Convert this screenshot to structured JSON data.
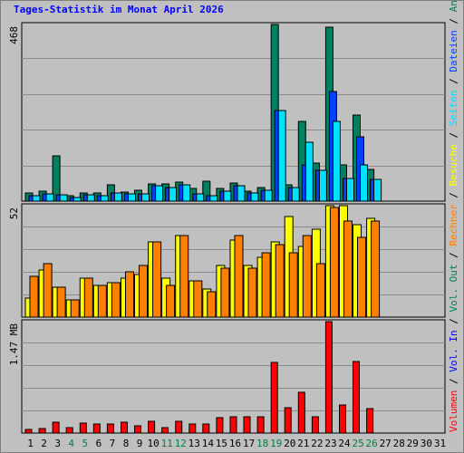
{
  "title": "Tages-Statistik im Monat April 2026",
  "colors": {
    "background": "#c0c0c0",
    "frame": "#808080",
    "grid": "#8c8c8c",
    "title": "#0000ff",
    "weekday_label": "#000000",
    "weekend_label": "#008040"
  },
  "chart_data": [
    {
      "type": "bar",
      "panel": "top",
      "ytick_label": "468",
      "ylim": [
        0,
        468
      ],
      "grid": true,
      "categories": [
        "1",
        "2",
        "3",
        "4",
        "5",
        "6",
        "7",
        "8",
        "9",
        "10",
        "11",
        "12",
        "13",
        "14",
        "15",
        "16",
        "17",
        "18",
        "19",
        "20",
        "21",
        "22",
        "23",
        "24",
        "25",
        "26",
        "27",
        "28",
        "29",
        "30",
        "31"
      ],
      "weekend_days": [
        4,
        5,
        11,
        12,
        18,
        19,
        25,
        26
      ],
      "series": [
        {
          "name": "Anfragen",
          "color": "#008060",
          "values": [
            22,
            26,
            120,
            14,
            22,
            21,
            44,
            25,
            29,
            46,
            46,
            50,
            34,
            53,
            34,
            47,
            27,
            37,
            468,
            42,
            212,
            100,
            460,
            95,
            229,
            85,
            null,
            null,
            null,
            null,
            null
          ]
        },
        {
          "name": "Dateien",
          "color": "#0040ff",
          "values": [
            14,
            20,
            16,
            10,
            16,
            14,
            22,
            18,
            20,
            40,
            35,
            44,
            20,
            14,
            26,
            40,
            22,
            30,
            240,
            36,
            95,
            82,
            290,
            60,
            170,
            58,
            null,
            null,
            null,
            null,
            null
          ]
        },
        {
          "name": "Seiten",
          "color": "#00e0ff",
          "values": [
            14,
            20,
            16,
            10,
            16,
            14,
            22,
            18,
            20,
            40,
            35,
            44,
            20,
            14,
            26,
            40,
            22,
            30,
            240,
            36,
            155,
            82,
            210,
            60,
            96,
            58,
            null,
            null,
            null,
            null,
            null
          ]
        }
      ]
    },
    {
      "type": "bar",
      "panel": "middle",
      "ytick_label": "52",
      "ylim": [
        0,
        52
      ],
      "grid": true,
      "categories": [
        "1",
        "2",
        "3",
        "4",
        "5",
        "6",
        "7",
        "8",
        "9",
        "10",
        "11",
        "12",
        "13",
        "14",
        "15",
        "16",
        "17",
        "18",
        "19",
        "20",
        "21",
        "22",
        "23",
        "24",
        "25",
        "26",
        "27",
        "28",
        "29",
        "30",
        "31"
      ],
      "series": [
        {
          "name": "Besuche",
          "color": "#ffff00",
          "values": [
            9,
            22,
            14,
            8,
            18,
            15,
            16,
            18,
            20,
            35,
            18,
            38,
            17,
            13,
            24,
            36,
            24,
            28,
            35,
            47,
            33,
            41,
            52,
            52,
            43,
            46,
            null,
            null,
            null,
            null,
            null
          ]
        },
        {
          "name": "Rechner",
          "color": "#ff8000",
          "values": [
            19,
            25,
            14,
            8,
            18,
            15,
            16,
            21,
            24,
            35,
            15,
            38,
            17,
            12,
            23,
            38,
            23,
            30,
            34,
            30,
            38,
            25,
            51,
            45,
            37,
            45,
            null,
            null,
            null,
            null,
            null
          ]
        }
      ]
    },
    {
      "type": "bar",
      "panel": "bottom",
      "ytick_label": "1.47 MB",
      "ylim": [
        0,
        1.47
      ],
      "grid": true,
      "categories": [
        "1",
        "2",
        "3",
        "4",
        "5",
        "6",
        "7",
        "8",
        "9",
        "10",
        "11",
        "12",
        "13",
        "14",
        "15",
        "16",
        "17",
        "18",
        "19",
        "20",
        "21",
        "22",
        "23",
        "24",
        "25",
        "26",
        "27",
        "28",
        "29",
        "30",
        "31"
      ],
      "series": [
        {
          "name": "Volumen",
          "color": "#ff0000",
          "values": [
            0.05,
            0.06,
            0.14,
            0.07,
            0.13,
            0.12,
            0.12,
            0.14,
            0.1,
            0.16,
            0.07,
            0.16,
            0.12,
            0.12,
            0.2,
            0.22,
            0.22,
            0.22,
            0.93,
            0.34,
            0.54,
            0.22,
            1.47,
            0.37,
            0.95,
            0.32,
            null,
            null,
            null,
            null,
            null
          ]
        }
      ]
    }
  ],
  "legend": [
    {
      "text": "Volumen",
      "color": "#ff0000"
    },
    {
      "text": " / ",
      "color": "#000000"
    },
    {
      "text": "Vol. In",
      "color": "#0000ff"
    },
    {
      "text": " / ",
      "color": "#000000"
    },
    {
      "text": "Vol. Out",
      "color": "#008060"
    },
    {
      "text": " / ",
      "color": "#000000"
    },
    {
      "text": "Rechner",
      "color": "#ff8000"
    },
    {
      "text": " / ",
      "color": "#000000"
    },
    {
      "text": "Besuche",
      "color": "#ffff00"
    },
    {
      "text": " / ",
      "color": "#000000"
    },
    {
      "text": "Seiten",
      "color": "#00e0ff"
    },
    {
      "text": " / ",
      "color": "#000000"
    },
    {
      "text": "Dateien",
      "color": "#0040ff"
    },
    {
      "text": " / ",
      "color": "#000000"
    },
    {
      "text": "Anfragen",
      "color": "#008060"
    }
  ]
}
